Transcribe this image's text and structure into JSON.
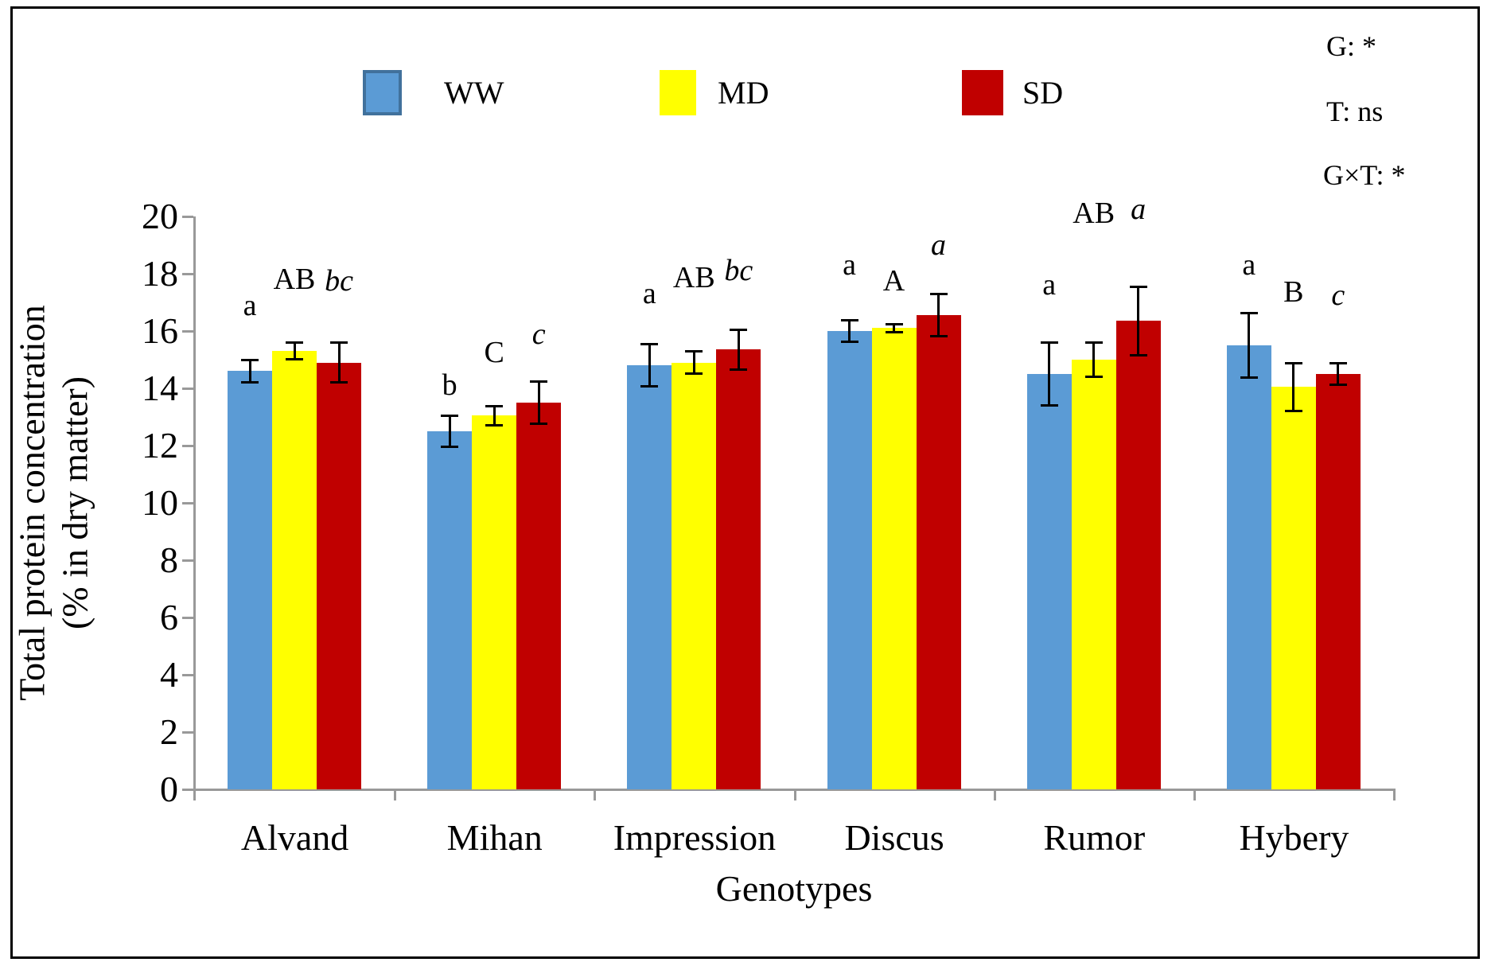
{
  "legend": {
    "items": [
      {
        "label": "WW",
        "color": "#5B9BD5",
        "border": "#41719C"
      },
      {
        "label": "MD",
        "color": "#FFFF00",
        "border": "#FFFF00"
      },
      {
        "label": "SD",
        "color": "#C00000",
        "border": "#C00000"
      }
    ]
  },
  "stats": {
    "line1": "G: *",
    "line2": "T: ns",
    "line3": "G×T: *"
  },
  "axes": {
    "y_title_line1": "Total protein concentration",
    "y_title_line2": "(% in dry matter)",
    "x_title": "Genotypes",
    "y_min": 0,
    "y_max": 20,
    "y_tick_step": 2
  },
  "chart_data": {
    "type": "bar",
    "title": "",
    "xlabel": "Genotypes",
    "ylabel": "Total protein concentration (% in dry matter)",
    "ylim": [
      0,
      20
    ],
    "grid": false,
    "legend_position": "top",
    "categories": [
      "Alvand",
      "Mihan",
      "Impression",
      "Discus",
      "Rumor",
      "Hybery"
    ],
    "series": [
      {
        "name": "WW",
        "color": "#5B9BD5",
        "values": [
          14.6,
          12.5,
          14.8,
          16.0,
          14.5,
          15.5
        ],
        "errors": [
          0.4,
          0.55,
          0.75,
          0.4,
          1.1,
          1.15
        ],
        "letters": [
          "a",
          "b",
          "a",
          "a",
          "a",
          "a"
        ],
        "letter_y": [
          16.9,
          14.1,
          17.3,
          18.3,
          17.6,
          18.3
        ],
        "letter_style": "normal"
      },
      {
        "name": "MD",
        "color": "#FFFF00",
        "values": [
          15.3,
          13.05,
          14.9,
          16.1,
          15.0,
          14.05
        ],
        "errors": [
          0.3,
          0.35,
          0.4,
          0.15,
          0.6,
          0.85
        ],
        "letters": [
          "AB",
          "C",
          "AB",
          "A",
          "AB",
          "B"
        ],
        "letter_y": [
          17.8,
          15.25,
          17.85,
          17.75,
          20.1,
          17.35
        ],
        "letter_style": "normal"
      },
      {
        "name": "SD",
        "color": "#C00000",
        "values": [
          14.9,
          13.5,
          15.35,
          16.55,
          16.35,
          14.5
        ],
        "errors": [
          0.7,
          0.75,
          0.7,
          0.75,
          1.2,
          0.4
        ],
        "letters": [
          "bc",
          "c",
          "bc",
          "a",
          "a",
          "c"
        ],
        "letter_y": [
          17.75,
          15.9,
          18.1,
          19.0,
          20.25,
          17.25
        ],
        "letter_style": "italic"
      }
    ],
    "significance": {
      "G": "*",
      "T": "ns",
      "GxT": "*"
    }
  }
}
